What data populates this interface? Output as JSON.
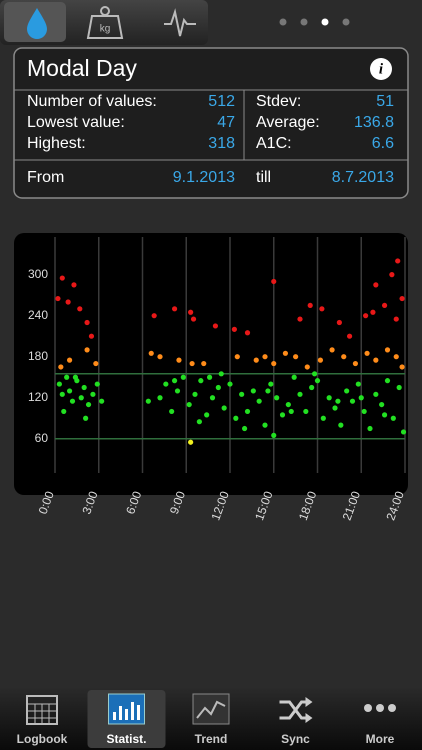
{
  "panel": {
    "title": "Modal Day",
    "stats": [
      {
        "label": "Number of values:",
        "value": "512"
      },
      {
        "label": "Lowest value:",
        "value": "47"
      },
      {
        "label": "Highest:",
        "value": "318"
      },
      {
        "label": "Stdev:",
        "value": "51"
      },
      {
        "label": "Average:",
        "value": "136.8"
      },
      {
        "label": "A1C:",
        "value": "6.6"
      }
    ],
    "from_label": "From",
    "from": "9.1.2013",
    "till_label": "till",
    "till": "8.7.2013"
  },
  "chart_data": {
    "type": "scatter",
    "xlim": [
      0,
      24
    ],
    "ylim": [
      10,
      355
    ],
    "xticks": [
      {
        "value": 0,
        "label": "0:00"
      },
      {
        "value": 3,
        "label": "3:00"
      },
      {
        "value": 6,
        "label": "6:00"
      },
      {
        "value": 9,
        "label": "9:00"
      },
      {
        "value": 12,
        "label": "12:00"
      },
      {
        "value": 15,
        "label": "15:00"
      },
      {
        "value": 18,
        "label": "18:00"
      },
      {
        "value": 21,
        "label": "21:00"
      },
      {
        "value": 24,
        "label": "24:00"
      }
    ],
    "yticks": [
      60,
      120,
      180,
      240,
      300
    ],
    "grid": "x",
    "target_lines": [
      60,
      155
    ],
    "target_color": "#2f6e3c",
    "series": [
      {
        "color": "#22e022",
        "x": [
          0.3,
          0.5,
          0.8,
          1.0,
          1.2,
          1.5,
          1.8,
          2.0,
          2.3,
          2.6,
          2.9,
          3.2,
          0.6,
          1.4,
          2.1,
          6.4,
          7.2,
          7.6,
          8.0,
          8.4,
          8.8,
          9.2,
          9.6,
          10.0,
          10.4,
          10.8,
          11.2,
          11.6,
          12.0,
          12.4,
          12.8,
          13.2,
          13.6,
          14.0,
          14.4,
          14.8,
          15.2,
          15.6,
          16.0,
          16.4,
          16.8,
          17.2,
          17.6,
          18.0,
          18.4,
          18.8,
          19.2,
          19.6,
          20.0,
          20.4,
          20.8,
          21.2,
          21.6,
          22.0,
          22.4,
          22.8,
          23.2,
          23.6,
          23.9,
          8.2,
          9.9,
          11.4,
          13.0,
          14.6,
          16.2,
          17.8,
          19.4,
          21.0,
          22.6,
          10.6,
          15.0
        ],
        "values": [
          140,
          125,
          150,
          130,
          115,
          145,
          120,
          135,
          110,
          125,
          140,
          115,
          100,
          150,
          90,
          115,
          120,
          140,
          100,
          130,
          150,
          110,
          125,
          145,
          95,
          120,
          135,
          105,
          140,
          90,
          125,
          100,
          130,
          115,
          80,
          140,
          120,
          95,
          110,
          150,
          125,
          100,
          135,
          145,
          90,
          120,
          105,
          80,
          130,
          115,
          140,
          100,
          75,
          125,
          110,
          145,
          90,
          135,
          70,
          145,
          85,
          155,
          75,
          130,
          100,
          155,
          115,
          120,
          95,
          150,
          65
        ]
      },
      {
        "color": "#ff8c1a",
        "x": [
          0.4,
          1.0,
          2.2,
          2.8,
          6.6,
          7.2,
          8.5,
          9.4,
          12.5,
          13.8,
          15.0,
          15.8,
          16.5,
          17.3,
          18.2,
          19.0,
          19.8,
          20.6,
          21.4,
          22.0,
          22.8,
          23.4,
          23.8,
          10.2,
          14.4
        ],
        "values": [
          165,
          175,
          190,
          170,
          185,
          180,
          175,
          170,
          180,
          175,
          170,
          185,
          180,
          165,
          175,
          190,
          180,
          170,
          185,
          175,
          190,
          180,
          165,
          170,
          180
        ]
      },
      {
        "color": "#e81818",
        "x": [
          0.5,
          0.9,
          1.3,
          1.7,
          2.2,
          2.5,
          0.2,
          6.8,
          8.2,
          9.3,
          9.5,
          11.0,
          12.3,
          13.2,
          15.0,
          16.8,
          17.5,
          18.3,
          19.5,
          20.2,
          21.3,
          22.0,
          22.6,
          23.1,
          23.5,
          23.8,
          23.4,
          21.8
        ],
        "values": [
          295,
          260,
          285,
          250,
          230,
          210,
          265,
          240,
          250,
          245,
          235,
          225,
          220,
          215,
          290,
          235,
          255,
          250,
          230,
          210,
          240,
          285,
          255,
          300,
          320,
          265,
          235,
          245
        ]
      },
      {
        "color": "#f0f020",
        "x": [
          9.3
        ],
        "values": [
          55
        ]
      }
    ]
  },
  "tabs": [
    "Logbook",
    "Statist.",
    "Trend",
    "Sync",
    "More"
  ],
  "active_tab": 1
}
